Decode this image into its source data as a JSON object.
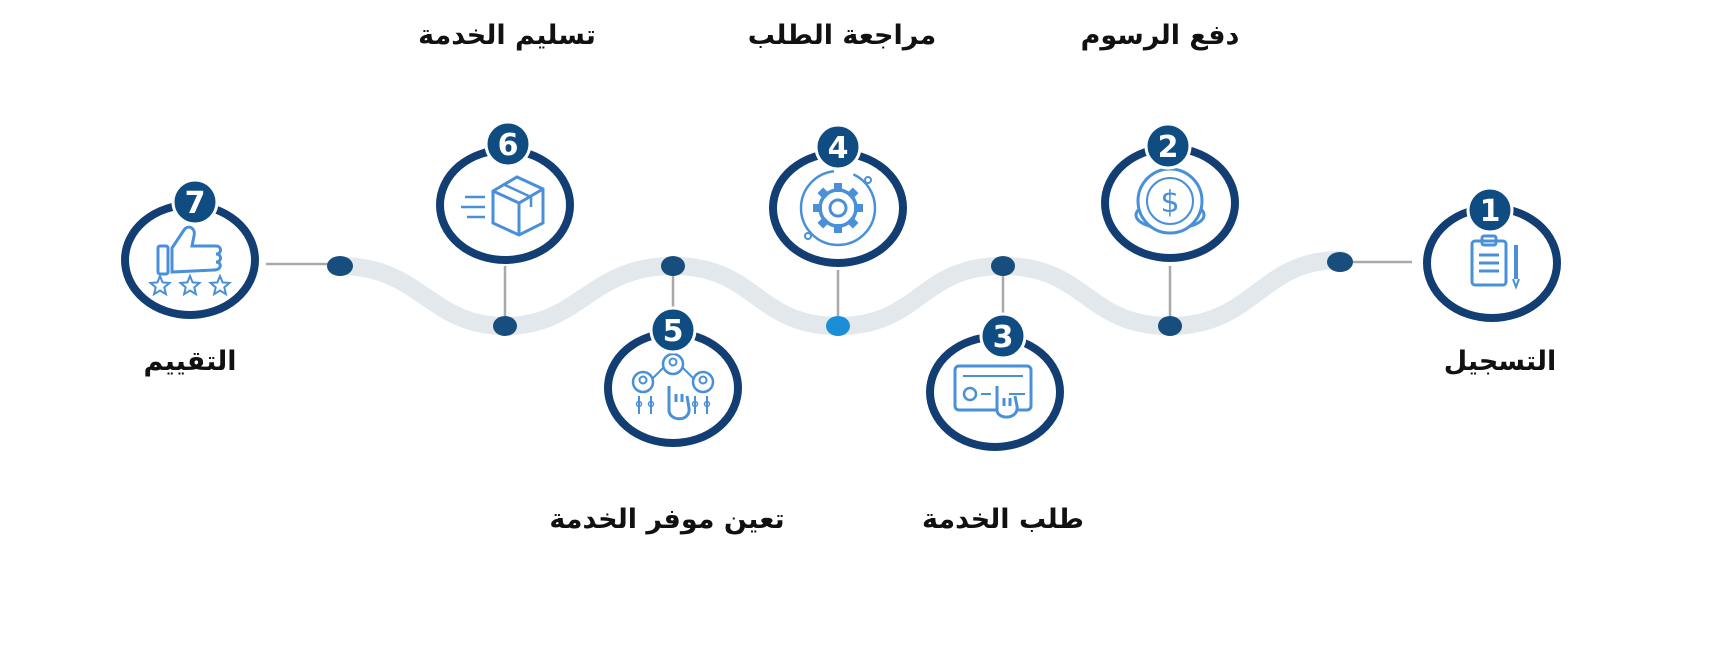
{
  "colors": {
    "ring": "#123e73",
    "badge": "#0f4c81",
    "icon": "#4a90d9",
    "road": "#e3e8ec",
    "connector": "#a9a9a9",
    "dot_dark": "#174e7e",
    "dot_active": "#1a8fd6",
    "text": "#111111"
  },
  "steps": [
    {
      "number": "1",
      "label": "التسجيل",
      "icon": "clipboard-pen-icon"
    },
    {
      "number": "2",
      "label": "دفع الرسوم",
      "icon": "dollar-coin-icon"
    },
    {
      "number": "3",
      "label": "طلب الخدمة",
      "icon": "form-click-icon"
    },
    {
      "number": "4",
      "label": "مراجعة الطلب",
      "icon": "gear-icon"
    },
    {
      "number": "5",
      "label": "تعين موفر الخدمة",
      "icon": "people-network-icon"
    },
    {
      "number": "6",
      "label": "تسليم الخدمة",
      "icon": "delivery-box-icon"
    },
    {
      "number": "7",
      "label": "التقييم",
      "icon": "thumbs-up-stars-icon"
    }
  ]
}
